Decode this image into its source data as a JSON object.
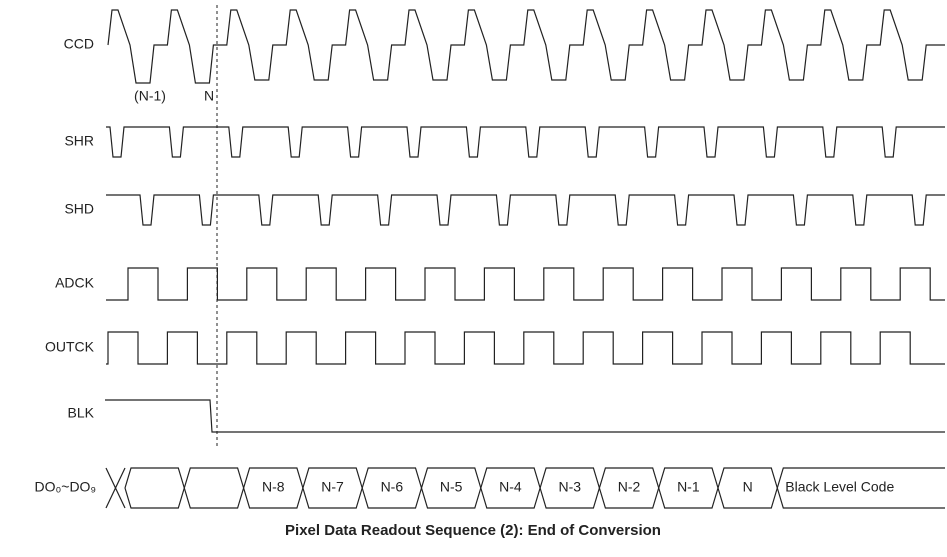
{
  "signals": [
    {
      "label": "CCD"
    },
    {
      "label": "SHR"
    },
    {
      "label": "SHD"
    },
    {
      "label": "ADCK"
    },
    {
      "label": "OUTCK"
    },
    {
      "label": "BLK"
    }
  ],
  "annotations": [
    "(N-1)",
    "N"
  ],
  "bus": {
    "label": "DO₀~DO₉",
    "cells": [
      "N-8",
      "N-7",
      "N-6",
      "N-5",
      "N-4",
      "N-3",
      "N-2",
      "N-1",
      "N",
      "Black Level Code"
    ]
  },
  "title": "Pixel Data Readout Sequence (2): End of Conversion"
}
